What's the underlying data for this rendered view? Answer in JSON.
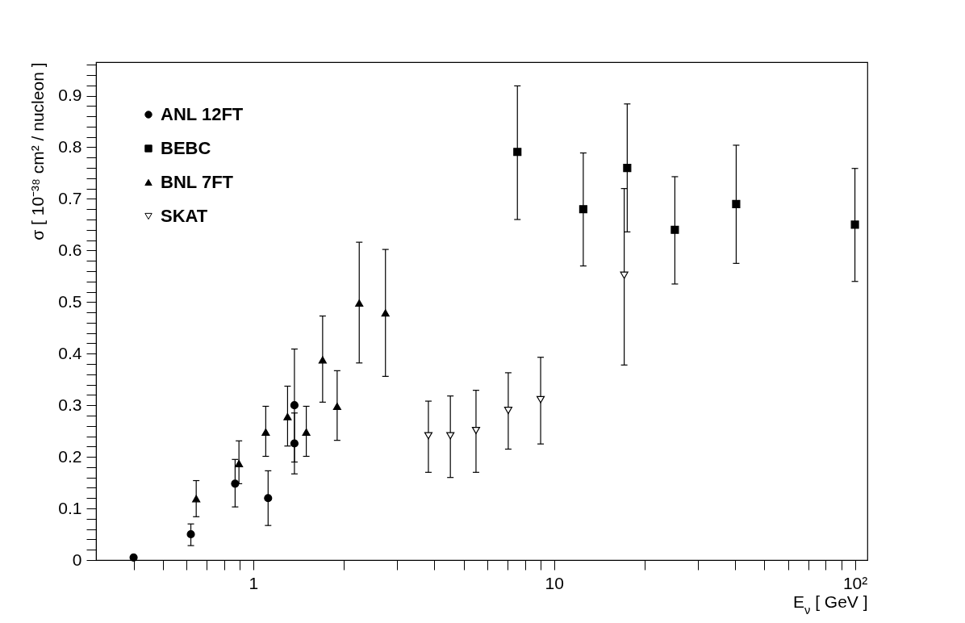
{
  "chart_data": {
    "type": "scatter",
    "xlabel": "E$_{ν}$  [ GeV ]",
    "ylabel": "σ  [ 10⁻³⁸ cm² / nucleon ]",
    "log": "x",
    "legend": "top left",
    "xlim": [
      0.3,
      110
    ],
    "ylim": [
      0,
      0.965
    ],
    "xticks": [
      {
        "value": 0.4,
        "label": null
      },
      {
        "value": 0.5,
        "label": null
      },
      {
        "value": 0.6,
        "label": null
      },
      {
        "value": 0.7,
        "label": null
      },
      {
        "value": 0.8,
        "label": null
      },
      {
        "value": 0.9,
        "label": null
      },
      1,
      {
        "value": 2,
        "label": null
      },
      {
        "value": 3,
        "label": null
      },
      {
        "value": 4,
        "label": null
      },
      {
        "value": 5,
        "label": null
      },
      {
        "value": 6,
        "label": null
      },
      {
        "value": 7,
        "label": null
      },
      {
        "value": 8,
        "label": null
      },
      {
        "value": 9,
        "label": null
      },
      10,
      {
        "value": 20,
        "label": null
      },
      {
        "value": 30,
        "label": null
      },
      {
        "value": 40,
        "label": null
      },
      {
        "value": 50,
        "label": null
      },
      {
        "value": 60,
        "label": null
      },
      {
        "value": 70,
        "label": null
      },
      {
        "value": 80,
        "label": null
      },
      {
        "value": 90,
        "label": null
      },
      {
        "value": 100,
        "label": "10²"
      }
    ],
    "yticks": [
      0,
      {
        "value": 0.02,
        "label": null
      },
      {
        "value": 0.04,
        "label": null
      },
      {
        "value": 0.06,
        "label": null
      },
      {
        "value": 0.08,
        "label": null
      },
      0.1,
      {
        "value": 0.12,
        "label": null
      },
      {
        "value": 0.14,
        "label": null
      },
      {
        "value": 0.16,
        "label": null
      },
      {
        "value": 0.18,
        "label": null
      },
      0.2,
      {
        "value": 0.22,
        "label": null
      },
      {
        "value": 0.24,
        "label": null
      },
      {
        "value": 0.26,
        "label": null
      },
      {
        "value": 0.28,
        "label": null
      },
      0.3,
      {
        "value": 0.32,
        "label": null
      },
      {
        "value": 0.34,
        "label": null
      },
      {
        "value": 0.36,
        "label": null
      },
      {
        "value": 0.38,
        "label": null
      },
      0.4,
      {
        "value": 0.42,
        "label": null
      },
      {
        "value": 0.44,
        "label": null
      },
      {
        "value": 0.46,
        "label": null
      },
      {
        "value": 0.48,
        "label": null
      },
      0.5,
      {
        "value": 0.52,
        "label": null
      },
      {
        "value": 0.54,
        "label": null
      },
      {
        "value": 0.56,
        "label": null
      },
      {
        "value": 0.58,
        "label": null
      },
      0.6,
      {
        "value": 0.62,
        "label": null
      },
      {
        "value": 0.64,
        "label": null
      },
      {
        "value": 0.66,
        "label": null
      },
      {
        "value": 0.68,
        "label": null
      },
      0.7,
      {
        "value": 0.72,
        "label": null
      },
      {
        "value": 0.74,
        "label": null
      },
      {
        "value": 0.76,
        "label": null
      },
      {
        "value": 0.78,
        "label": null
      },
      0.8,
      {
        "value": 0.82,
        "label": null
      },
      {
        "value": 0.84,
        "label": null
      },
      {
        "value": 0.86,
        "label": null
      },
      {
        "value": 0.88,
        "label": null
      },
      0.9,
      {
        "value": 0.92,
        "label": null
      },
      {
        "value": 0.94,
        "label": null
      },
      {
        "value": 0.96,
        "label": null
      }
    ],
    "series": [
      {
        "name": "ANL 12FT",
        "color": "#000000",
        "marker": "circle",
        "x": [
          0.4,
          0.62,
          0.87,
          1.12,
          1.37,
          1.37
        ],
        "values": [
          0.005,
          0.05,
          0.148,
          0.12,
          0.3,
          0.226
        ],
        "errors": [
          null,
          [
            0.028,
            0.07
          ],
          [
            0.103,
            0.195
          ],
          [
            0.067,
            0.173
          ],
          [
            0.19,
            0.409
          ],
          [
            0.167,
            0.285
          ]
        ]
      },
      {
        "name": "BEBC",
        "color": "#000000",
        "marker": "square",
        "x": [
          7.55,
          12.5,
          17.5,
          25.2,
          40.3,
          100
        ],
        "values": [
          0.791,
          0.68,
          0.76,
          0.64,
          0.69,
          0.65
        ],
        "errors": [
          [
            0.66,
            0.919
          ],
          [
            0.57,
            0.789
          ],
          [
            0.636,
            0.884
          ],
          [
            0.535,
            0.743
          ],
          [
            0.575,
            0.804
          ],
          [
            0.54,
            0.759
          ]
        ]
      },
      {
        "name": "BNL 7FT",
        "color": "#000000",
        "marker": "triangle",
        "x": [
          0.646,
          0.896,
          1.1,
          1.3,
          1.5,
          1.7,
          1.9,
          2.25,
          2.75
        ],
        "values": [
          0.119,
          0.187,
          0.248,
          0.278,
          0.248,
          0.388,
          0.298,
          0.498,
          0.479
        ],
        "errors": [
          [
            0.084,
            0.154
          ],
          [
            0.148,
            0.231
          ],
          [
            0.201,
            0.298
          ],
          [
            0.221,
            0.337
          ],
          [
            0.201,
            0.298
          ],
          [
            0.306,
            0.473
          ],
          [
            0.232,
            0.367
          ],
          [
            0.382,
            0.616
          ],
          [
            0.356,
            0.602
          ]
        ]
      },
      {
        "name": "SKAT",
        "color": "#000000",
        "marker": "triangle-down",
        "x": [
          3.82,
          4.52,
          5.5,
          7.04,
          9.02,
          17.1
        ],
        "values": [
          0.241,
          0.241,
          0.251,
          0.29,
          0.311,
          0.552
        ],
        "errors": [
          [
            0.17,
            0.308
          ],
          [
            0.16,
            0.318
          ],
          [
            0.17,
            0.329
          ],
          [
            0.215,
            0.363
          ],
          [
            0.225,
            0.393
          ],
          [
            0.378,
            0.72
          ]
        ]
      }
    ]
  }
}
